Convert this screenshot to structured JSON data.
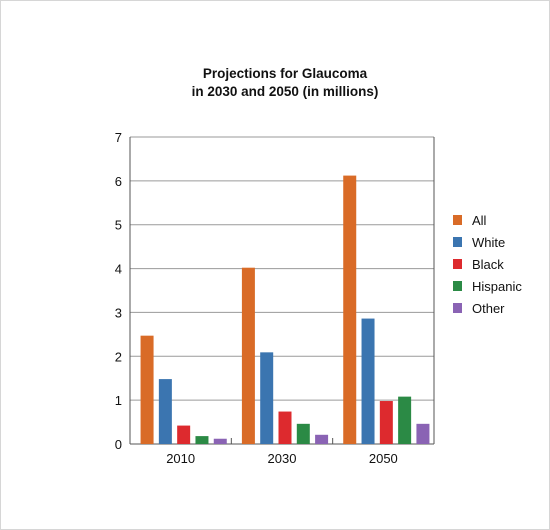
{
  "chart_data": {
    "type": "bar",
    "title": "Projections for Glaucoma",
    "subtitle": "in 2030 and 2050 (in millions)",
    "categories": [
      "2010",
      "2030",
      "2050"
    ],
    "series": [
      {
        "name": "All",
        "color": "#d96b27",
        "values": [
          2.47,
          4.02,
          6.12
        ]
      },
      {
        "name": "White",
        "color": "#3b75b0",
        "values": [
          1.48,
          2.09,
          2.86
        ]
      },
      {
        "name": "Black",
        "color": "#dd2a2e",
        "values": [
          0.42,
          0.74,
          0.98
        ]
      },
      {
        "name": "Hispanic",
        "color": "#2b8a45",
        "values": [
          0.18,
          0.46,
          1.08
        ]
      },
      {
        "name": "Other",
        "color": "#8a63b4",
        "values": [
          0.12,
          0.21,
          0.46
        ]
      }
    ],
    "yticks": [
      "0",
      "1",
      "2",
      "3",
      "4",
      "5",
      "6",
      "7"
    ],
    "ylim": [
      0,
      7
    ],
    "grid": true,
    "legend_position": "right"
  }
}
